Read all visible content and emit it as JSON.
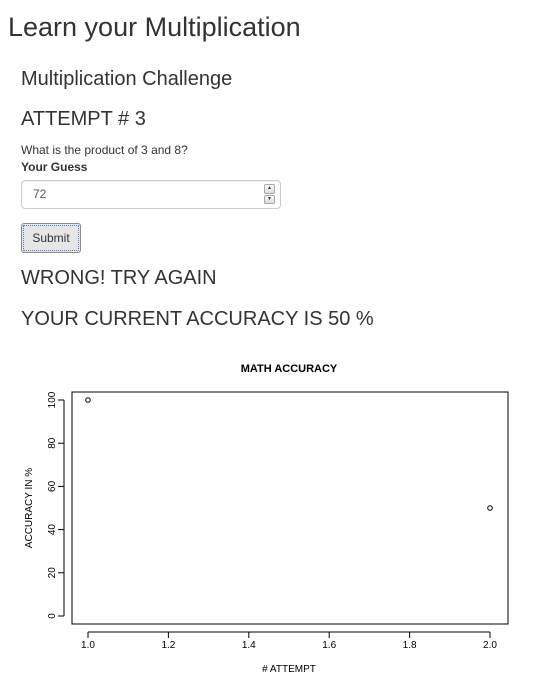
{
  "app": {
    "title": "Learn your Multiplication"
  },
  "panel": {
    "title": "Multiplication Challenge",
    "attempt_label": "ATTEMPT # 3",
    "question": "What is the product of 3 and 8?",
    "guess_label": "Your Guess",
    "guess_value": "72",
    "submit_label": "Submit",
    "feedback": "WRONG! TRY AGAIN",
    "accuracy_text": "YOUR CURRENT ACCURACY IS 50 %"
  },
  "icons": {
    "spinner_up": "triangle-up-icon",
    "spinner_down": "triangle-down-icon"
  },
  "chart_data": {
    "type": "scatter",
    "title": "MATH ACCURACY",
    "xlabel": "# ATTEMPT",
    "ylabel": "ACCURACY IN %",
    "x": [
      1.0,
      2.0
    ],
    "y": [
      100,
      50
    ],
    "xlim": [
      1.0,
      2.0
    ],
    "ylim": [
      0,
      100
    ],
    "x_ticks": [
      1.0,
      1.2,
      1.4,
      1.6,
      1.8,
      2.0
    ],
    "x_tick_labels": [
      "1.0",
      "1.2",
      "1.4",
      "1.6",
      "1.8",
      "2.0"
    ],
    "y_ticks": [
      0,
      20,
      40,
      60,
      80,
      100
    ],
    "y_tick_labels": [
      "0",
      "20",
      "40",
      "60",
      "80",
      "100"
    ],
    "grid": false,
    "marker": "open-circle",
    "color": "#000000"
  }
}
